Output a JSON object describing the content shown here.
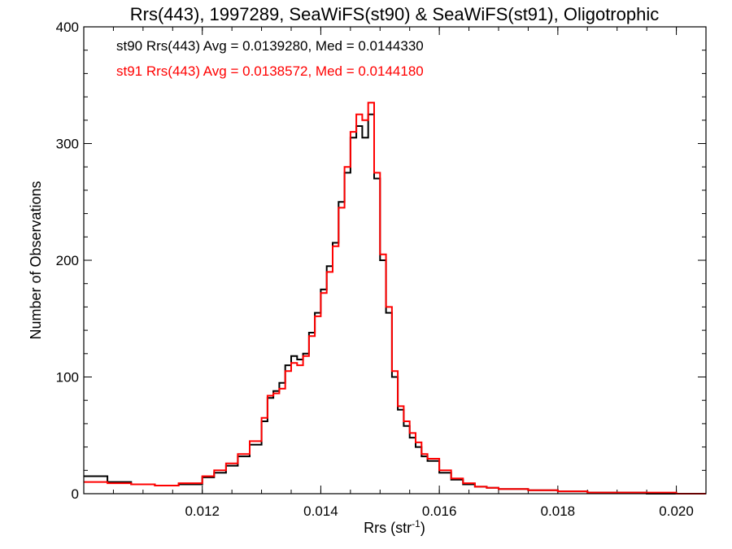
{
  "chart_data": {
    "type": "line",
    "title": "Rrs(443), 1997289, SeaWiFS(st90) & SeaWiFS(st91), Oligotrophic",
    "xlabel_main": "Rrs (str",
    "xlabel_sup": "-1",
    "xlabel_close": ")",
    "ylabel": "Number of Observations",
    "xlim": [
      0.01,
      0.0205
    ],
    "ylim": [
      0,
      400
    ],
    "x_ticks": [
      0.012,
      0.014,
      0.016,
      0.018,
      0.02
    ],
    "x_tick_labels": [
      "0.012",
      "0.014",
      "0.016",
      "0.018",
      "0.020"
    ],
    "y_ticks": [
      0,
      100,
      200,
      300,
      400
    ],
    "y_tick_labels": [
      "0",
      "100",
      "200",
      "300",
      "400"
    ],
    "legend_position": "top-left",
    "series": [
      {
        "name": "st90 Rrs(443) Avg = 0.0139280, Med = 0.0144330",
        "color": "#000000",
        "x": [
          0.01,
          0.0104,
          0.0108,
          0.0112,
          0.0116,
          0.012,
          0.0122,
          0.0124,
          0.0126,
          0.0128,
          0.013,
          0.0131,
          0.0132,
          0.0133,
          0.0134,
          0.0135,
          0.0136,
          0.0137,
          0.0138,
          0.0139,
          0.014,
          0.0141,
          0.0142,
          0.0143,
          0.0144,
          0.0145,
          0.0146,
          0.0147,
          0.0148,
          0.0149,
          0.015,
          0.0151,
          0.0152,
          0.0153,
          0.0154,
          0.0155,
          0.0156,
          0.0157,
          0.0158,
          0.016,
          0.0162,
          0.0164,
          0.0166,
          0.0168,
          0.017,
          0.0175,
          0.018,
          0.0185,
          0.019,
          0.0195,
          0.02,
          0.0205
        ],
        "values": [
          15,
          10,
          8,
          7,
          8,
          14,
          18,
          24,
          32,
          42,
          62,
          82,
          88,
          95,
          110,
          118,
          115,
          120,
          138,
          155,
          175,
          195,
          215,
          250,
          275,
          305,
          315,
          305,
          325,
          270,
          200,
          155,
          100,
          72,
          58,
          48,
          40,
          32,
          28,
          18,
          12,
          8,
          6,
          5,
          4,
          3,
          2,
          1,
          1,
          0,
          0,
          0
        ]
      },
      {
        "name": "st91 Rrs(443) Avg = 0.0138572, Med = 0.0144180",
        "color": "#ff0000",
        "x": [
          0.01,
          0.0104,
          0.0108,
          0.0112,
          0.0116,
          0.012,
          0.0122,
          0.0124,
          0.0126,
          0.0128,
          0.013,
          0.0131,
          0.0132,
          0.0133,
          0.0134,
          0.0135,
          0.0136,
          0.0137,
          0.0138,
          0.0139,
          0.014,
          0.0141,
          0.0142,
          0.0143,
          0.0144,
          0.0145,
          0.0146,
          0.0147,
          0.0148,
          0.0149,
          0.015,
          0.0151,
          0.0152,
          0.0153,
          0.0154,
          0.0155,
          0.0156,
          0.0157,
          0.0158,
          0.016,
          0.0162,
          0.0164,
          0.0166,
          0.0168,
          0.017,
          0.0175,
          0.018,
          0.0185,
          0.019,
          0.0195,
          0.02,
          0.0205
        ],
        "values": [
          10,
          9,
          8,
          7,
          9,
          15,
          20,
          26,
          34,
          45,
          65,
          84,
          86,
          90,
          105,
          112,
          110,
          118,
          135,
          152,
          172,
          190,
          212,
          245,
          280,
          310,
          325,
          320,
          335,
          275,
          205,
          160,
          105,
          75,
          62,
          52,
          44,
          34,
          30,
          20,
          13,
          9,
          6,
          5,
          4,
          3,
          2,
          1,
          1,
          1,
          0,
          0
        ]
      }
    ]
  }
}
